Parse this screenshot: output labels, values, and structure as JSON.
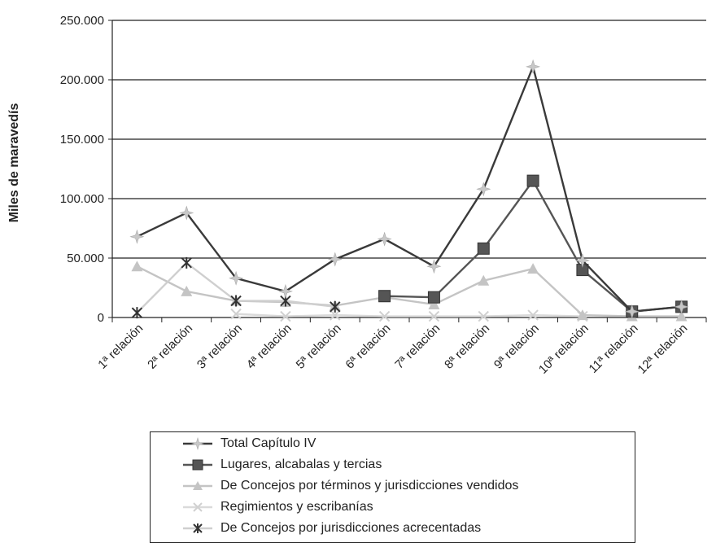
{
  "chart_data": {
    "type": "line",
    "ylabel": "Miles de maravedís",
    "ylim": [
      0,
      250000
    ],
    "yticks": [
      0,
      50000,
      100000,
      150000,
      200000,
      250000
    ],
    "ytick_labels": [
      "0",
      "50.000",
      "100.000",
      "150.000",
      "200.000",
      "250.000"
    ],
    "grid": "horizontal",
    "legend_position": "bottom",
    "categories": [
      "1ª relación",
      "2ª relación",
      "3ª relación",
      "4ª relación",
      "5ª relación",
      "6ª relación",
      "7ª relación",
      "8ª relación",
      "9ª relación",
      "10ª relación",
      "11ª relación",
      "12ª relación"
    ],
    "series": [
      {
        "name": "Total Capítulo IV",
        "color": "#3a3a3a",
        "marker": "star",
        "marker_color": "#c8c8c8",
        "values": [
          68000,
          88000,
          33000,
          22000,
          49000,
          66000,
          43000,
          108000,
          211000,
          48000,
          5000,
          9000
        ]
      },
      {
        "name": "Lugares, alcabalas y tercias",
        "color": "#555555",
        "marker": "square",
        "marker_color": "#555555",
        "values": [
          null,
          null,
          null,
          null,
          null,
          18000,
          17000,
          58000,
          115000,
          40000,
          5000,
          9000
        ]
      },
      {
        "name": "De Concejos por términos y jurisdicciones vendidos",
        "color": "#c4c4c4",
        "marker": "triangle",
        "marker_color": "#c4c4c4",
        "values": [
          43000,
          22000,
          14000,
          13000,
          10000,
          17000,
          11000,
          31000,
          41000,
          2000,
          1000,
          1000
        ]
      },
      {
        "name": "Regimientos y escribanías",
        "color": "#dadada",
        "marker": "x",
        "marker_color": "#d0d0d0",
        "values": [
          null,
          null,
          3000,
          1000,
          2000,
          1000,
          1000,
          1000,
          2000,
          1000,
          null,
          null
        ]
      },
      {
        "name": "De Concejos por jurisdicciones acrecentadas",
        "color": "#cfcfcf",
        "marker": "asterisk",
        "marker_color": "#333333",
        "values": [
          4000,
          46000,
          14000,
          14000,
          9000,
          null,
          null,
          null,
          null,
          null,
          null,
          null
        ]
      }
    ]
  }
}
